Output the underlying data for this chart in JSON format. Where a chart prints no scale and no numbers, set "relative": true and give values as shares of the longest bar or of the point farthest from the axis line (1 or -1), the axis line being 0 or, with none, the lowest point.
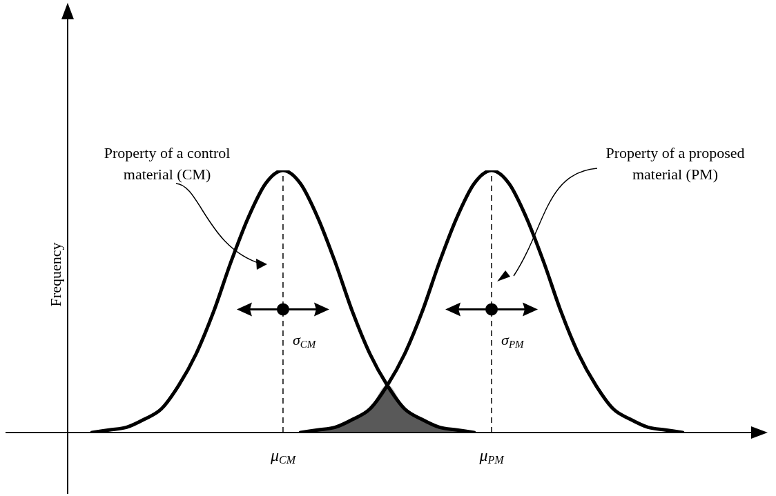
{
  "chart_data": {
    "type": "line",
    "relative": true,
    "ylabel": "Frequency",
    "marker": "none",
    "line_style": "solid",
    "categories": [
      null,
      null,
      null,
      null,
      null,
      null,
      null,
      null,
      null,
      null,
      null,
      "μ$_{CM}$",
      null,
      null,
      null,
      null,
      null,
      null,
      null,
      null,
      null,
      null,
      null,
      "μ$_{PM}$",
      null,
      null,
      null,
      null,
      null,
      null,
      null,
      null,
      null,
      null,
      null
    ],
    "series": [
      {
        "type": "area",
        "color": "#595959",
        "values": [
          null,
          null,
          null,
          null,
          null,
          null,
          null,
          null,
          null,
          null,
          null,
          null,
          0,
          0.01,
          0.02,
          0.05,
          0.09,
          0.18,
          0.09,
          0.05,
          0.02,
          0.01,
          0,
          null,
          null,
          null,
          null,
          null,
          null,
          null,
          null,
          null,
          null,
          null,
          null
        ]
      },
      {
        "color": "#000000",
        "values": [
          0,
          0.01,
          0.02,
          0.05,
          0.09,
          0.18,
          0.3,
          0.46,
          0.65,
          0.82,
          0.95,
          1,
          0.95,
          0.82,
          0.65,
          0.46,
          0.3,
          0.18,
          0.09,
          0.05,
          0.02,
          0.01,
          0,
          null,
          null,
          null,
          null,
          null,
          null,
          null,
          null,
          null,
          null,
          null,
          null
        ]
      },
      {
        "color": "#000000",
        "values": [
          null,
          null,
          null,
          null,
          null,
          null,
          null,
          null,
          null,
          null,
          null,
          null,
          0,
          0.01,
          0.02,
          0.05,
          0.09,
          0.18,
          0.3,
          0.46,
          0.65,
          0.82,
          0.95,
          1,
          0.95,
          0.82,
          0.65,
          0.46,
          0.3,
          0.18,
          0.09,
          0.05,
          0.02,
          0.01,
          0
        ]
      }
    ],
    "ref_lines": [
      {
        "axis": "x",
        "value": "μ$_{CM}$",
        "line_style": "dashed",
        "color": "#000000"
      },
      {
        "axis": "x",
        "value": "μ$_{PM}$",
        "line_style": "dashed",
        "color": "#000000"
      }
    ],
    "annotations": [
      "Property of a control material (CM)",
      "Property of a proposed material (PM)",
      {
        "text": "σ$_{CM}$",
        "x": "μ$_{CM}$",
        "y": 0.35
      },
      {
        "text": "σ$_{PM}$",
        "x": "μ$_{PM}$",
        "y": 0.35
      }
    ]
  }
}
